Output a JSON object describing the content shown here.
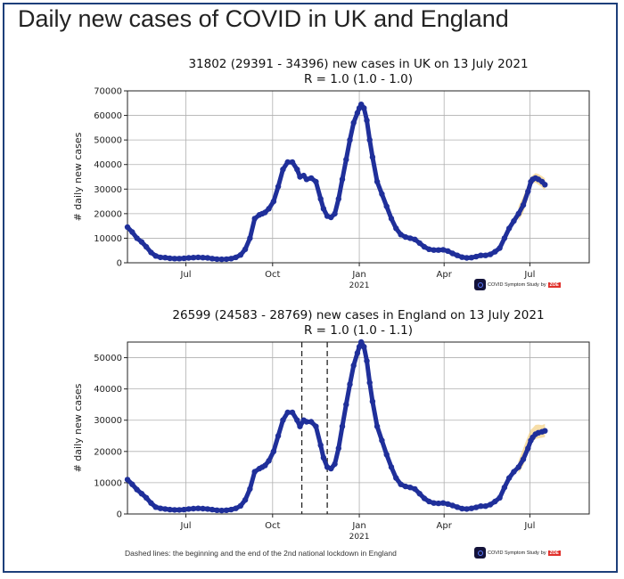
{
  "page": {
    "title": "Daily new cases of COVID in UK and England",
    "footnote": "Dashed lines: the beginning and the end of the 2nd national lockdown in England",
    "logo": {
      "text": "COVID Symptom Study",
      "by": "by",
      "brand": "ZOE"
    },
    "colors": {
      "line": "#1f2f9a",
      "band": "#f2c86e",
      "grid": "#b0b0b0",
      "frame": "#1d3f7a"
    }
  },
  "chart_data": [
    {
      "type": "line",
      "title_line1": "31802 (29391 - 34396) new cases in UK on 13 July 2021",
      "title_line2": "R = 1.0 (1.0 - 1.0)",
      "ylabel": "# daily new cases",
      "ylim": [
        0,
        70000
      ],
      "yticks": [
        0,
        10000,
        20000,
        30000,
        40000,
        50000,
        60000,
        70000
      ],
      "xlim": [
        0,
        490
      ],
      "xticks": [
        {
          "day": 62,
          "label": "Jul"
        },
        {
          "day": 154,
          "label": "Oct"
        },
        {
          "day": 246,
          "label": "Jan"
        },
        {
          "day": 336,
          "label": "Apr"
        },
        {
          "day": 427,
          "label": "Jul"
        }
      ],
      "year_label": {
        "day": 246,
        "label": "2021"
      },
      "grid": true,
      "series": [
        {
          "x": [
            0,
            5,
            10,
            15,
            20,
            25,
            30,
            35,
            40,
            45,
            50,
            55,
            60,
            65,
            70,
            75,
            80,
            85,
            90,
            95,
            100,
            105,
            110,
            115,
            120,
            125,
            130,
            135,
            140,
            143,
            146,
            150,
            155,
            160,
            165,
            170,
            175,
            180,
            183,
            187,
            190,
            195,
            200,
            205,
            208,
            212,
            216,
            220,
            224,
            228,
            232,
            236,
            240,
            244,
            246,
            248,
            251,
            254,
            257,
            260,
            265,
            270,
            275,
            280,
            285,
            290,
            295,
            300,
            305,
            310,
            315,
            320,
            325,
            330,
            335,
            340,
            345,
            350,
            355,
            360,
            365,
            370,
            375,
            380,
            385,
            390,
            395,
            400,
            405,
            410,
            415,
            420,
            425,
            428,
            430,
            433,
            436,
            440,
            443
          ],
          "y": [
            14500,
            12500,
            10000,
            8500,
            6500,
            4200,
            2800,
            2200,
            2100,
            1800,
            1700,
            1700,
            1800,
            2000,
            2100,
            2200,
            2100,
            2000,
            1700,
            1500,
            1400,
            1500,
            1700,
            2200,
            3200,
            5500,
            10000,
            18000,
            19500,
            20000,
            20500,
            22000,
            25000,
            31000,
            38000,
            41000,
            41000,
            38000,
            35000,
            35500,
            34000,
            34500,
            33000,
            26000,
            22000,
            19000,
            18500,
            20000,
            26000,
            34000,
            42000,
            50000,
            57000,
            61000,
            63000,
            64500,
            63000,
            58000,
            50000,
            43000,
            33000,
            28000,
            23000,
            18000,
            14000,
            11500,
            10500,
            10000,
            9500,
            8000,
            6500,
            5500,
            5200,
            5200,
            5300,
            4800,
            3800,
            3000,
            2300,
            2000,
            2100,
            2500,
            3000,
            3000,
            3400,
            4500,
            6000,
            10000,
            14000,
            17000,
            20000,
            23500,
            29000,
            33000,
            34000,
            34500,
            34000,
            33000,
            31800
          ],
          "upper": [
            [
              415,
              23000
            ],
            [
              420,
              27000
            ],
            [
              425,
              32000
            ],
            [
              428,
              34800
            ],
            [
              430,
              35700
            ],
            [
              433,
              36500
            ],
            [
              436,
              36200
            ],
            [
              440,
              35200
            ],
            [
              443,
              34400
            ]
          ],
          "lower": [
            [
              415,
              17000
            ],
            [
              420,
              20500
            ],
            [
              425,
              26000
            ],
            [
              428,
              31200
            ],
            [
              430,
              32400
            ],
            [
              433,
              32600
            ],
            [
              436,
              31800
            ],
            [
              440,
              30800
            ],
            [
              443,
              29400
            ]
          ]
        }
      ]
    },
    {
      "type": "line",
      "title_line1": "26599 (24583 - 28769) new cases in England on 13 July 2021",
      "title_line2": "R = 1.0 (1.0 - 1.1)",
      "ylabel": "# daily new cases",
      "ylim": [
        0,
        55000
      ],
      "yticks": [
        0,
        10000,
        20000,
        30000,
        40000,
        50000
      ],
      "xlim": [
        0,
        490
      ],
      "xticks": [
        {
          "day": 62,
          "label": "Jul"
        },
        {
          "day": 154,
          "label": "Oct"
        },
        {
          "day": 246,
          "label": "Jan"
        },
        {
          "day": 336,
          "label": "Apr"
        },
        {
          "day": 427,
          "label": "Jul"
        }
      ],
      "year_label": {
        "day": 246,
        "label": "2021"
      },
      "grid": true,
      "vlines_dashed": [
        {
          "day": 185
        },
        {
          "day": 212
        }
      ],
      "series": [
        {
          "x": [
            0,
            5,
            10,
            15,
            20,
            25,
            30,
            35,
            40,
            45,
            50,
            55,
            60,
            65,
            70,
            75,
            80,
            85,
            90,
            95,
            100,
            105,
            110,
            115,
            120,
            125,
            130,
            135,
            140,
            143,
            146,
            150,
            155,
            160,
            165,
            170,
            175,
            180,
            183,
            187,
            190,
            195,
            200,
            205,
            208,
            212,
            216,
            220,
            224,
            228,
            232,
            236,
            240,
            244,
            246,
            248,
            251,
            254,
            257,
            260,
            265,
            270,
            275,
            280,
            285,
            290,
            295,
            300,
            305,
            310,
            315,
            320,
            325,
            330,
            335,
            340,
            345,
            350,
            355,
            360,
            365,
            370,
            375,
            380,
            385,
            390,
            395,
            400,
            405,
            410,
            415,
            420,
            425,
            428,
            430,
            433,
            436,
            440,
            443
          ],
          "y": [
            11000,
            9500,
            7800,
            6500,
            5200,
            3500,
            2200,
            1800,
            1600,
            1400,
            1300,
            1300,
            1400,
            1600,
            1700,
            1800,
            1700,
            1600,
            1400,
            1200,
            1100,
            1200,
            1400,
            1800,
            2600,
            4500,
            8000,
            13500,
            14500,
            15000,
            15500,
            17000,
            20000,
            25000,
            30000,
            32500,
            32500,
            30000,
            28000,
            30000,
            29500,
            29500,
            28000,
            22000,
            18000,
            15000,
            14500,
            16000,
            21000,
            28000,
            35000,
            41500,
            47500,
            51500,
            53500,
            55000,
            53500,
            49000,
            42000,
            36000,
            28000,
            23500,
            19000,
            15000,
            11500,
            9500,
            8800,
            8500,
            8000,
            6500,
            5000,
            4000,
            3500,
            3400,
            3500,
            3200,
            2700,
            2200,
            1700,
            1600,
            1800,
            2100,
            2500,
            2500,
            3000,
            4000,
            5200,
            8500,
            11500,
            13500,
            15000,
            17500,
            21000,
            23500,
            24500,
            25500,
            26000,
            26300,
            26600
          ],
          "upper": [
            [
              415,
              17000
            ],
            [
              420,
              21000
            ],
            [
              425,
              25000
            ],
            [
              428,
              27000
            ],
            [
              430,
              27500
            ],
            [
              433,
              28500
            ],
            [
              436,
              28600
            ],
            [
              440,
              28400
            ],
            [
              443,
              28800
            ]
          ],
          "lower": [
            [
              415,
              13000
            ],
            [
              420,
              15500
            ],
            [
              425,
              19500
            ],
            [
              428,
              22000
            ],
            [
              430,
              23000
            ],
            [
              433,
              24000
            ],
            [
              436,
              24200
            ],
            [
              440,
              24400
            ],
            [
              443,
              24600
            ]
          ]
        }
      ]
    }
  ]
}
